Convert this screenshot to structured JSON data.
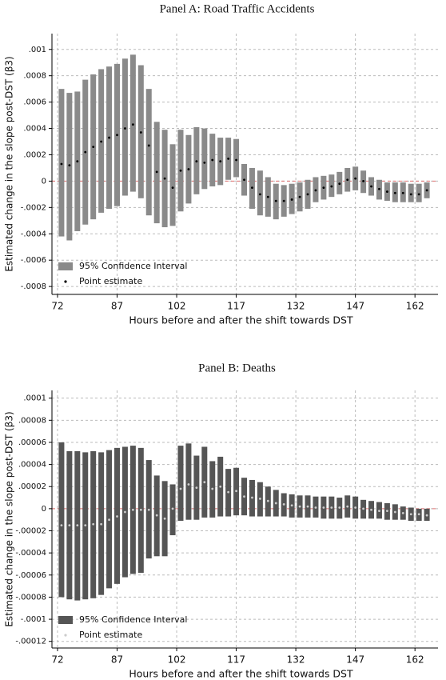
{
  "chart_data": [
    {
      "type": "interval",
      "title": "Panel A: Road Traffic Accidents",
      "xlabel": "Hours before and after the shift towards DST",
      "ylabel": "Estimated change in the slope post-DST (β3)",
      "x": [
        73,
        75,
        77,
        79,
        81,
        83,
        85,
        87,
        89,
        91,
        93,
        95,
        97,
        99,
        101,
        103,
        105,
        107,
        109,
        111,
        113,
        115,
        117,
        119,
        121,
        123,
        125,
        127,
        129,
        131,
        133,
        135,
        137,
        139,
        141,
        143,
        145,
        147,
        149,
        151,
        153,
        155,
        157,
        159,
        161,
        163,
        165
      ],
      "series": [
        {
          "name": "95% Confidence Interval",
          "color": "#8a8a8a",
          "upper": [
            0.0007,
            0.00067,
            0.00068,
            0.00077,
            0.00081,
            0.00085,
            0.00087,
            0.00089,
            0.00093,
            0.00096,
            0.00088,
            0.0007,
            0.00045,
            0.00039,
            0.00028,
            0.00039,
            0.00035,
            0.00041,
            0.0004,
            0.00036,
            0.00033,
            0.00033,
            0.00032,
            0.00013,
            0.0001,
            8e-05,
            3e-05,
            -2e-05,
            -3e-05,
            -2e-05,
            -1e-05,
            1e-05,
            3e-05,
            4e-05,
            5e-05,
            7e-05,
            0.0001,
            0.00011,
            8e-05,
            3e-05,
            1e-05,
            -1e-05,
            -1e-05,
            -1e-05,
            -2e-05,
            -2e-05,
            -1e-05
          ],
          "lower": [
            -0.00042,
            -0.00045,
            -0.00038,
            -0.00033,
            -0.00029,
            -0.00024,
            -0.00021,
            -0.00019,
            -0.00011,
            -8e-05,
            -0.00013,
            -0.00026,
            -0.00032,
            -0.00035,
            -0.00034,
            -0.00023,
            -0.00017,
            -0.0001,
            -6e-05,
            -4e-05,
            -3e-05,
            1e-05,
            3e-05,
            -0.00011,
            -0.00021,
            -0.00026,
            -0.00027,
            -0.00029,
            -0.00027,
            -0.00025,
            -0.00023,
            -0.00021,
            -0.00016,
            -0.00014,
            -0.00012,
            -0.0001,
            -8e-05,
            -7e-05,
            -9e-05,
            -0.00011,
            -0.00014,
            -0.00015,
            -0.00016,
            -0.00016,
            -0.00016,
            -0.00016,
            -0.00013
          ]
        },
        {
          "name": "Point estimate",
          "color": "#000000",
          "values": [
            0.00013,
            0.00012,
            0.00015,
            0.00022,
            0.00026,
            0.0003,
            0.00033,
            0.00035,
            0.0004,
            0.00043,
            0.00037,
            0.00027,
            7e-05,
            2e-05,
            -5e-05,
            8e-05,
            9e-05,
            0.00015,
            0.00014,
            0.00016,
            0.00015,
            0.00017,
            0.00016,
            1e-05,
            -5e-05,
            -0.0001,
            -0.00012,
            -0.00015,
            -0.00015,
            -0.00014,
            -0.00012,
            -0.0001,
            -7e-05,
            -5e-05,
            -4e-05,
            -2e-05,
            1e-05,
            2e-05,
            0,
            -4e-05,
            -6e-05,
            -8e-05,
            -9e-05,
            -9e-05,
            -0.0001,
            -0.0001,
            -7e-05
          ]
        }
      ],
      "xlim": [
        70.6,
        167.8
      ],
      "xticks": [
        72,
        87,
        102,
        117,
        132,
        147,
        162
      ],
      "ylim": [
        -0.00086,
        0.00112
      ],
      "yticks": [
        {
          "value": 0.001,
          "label": ".001"
        },
        {
          "value": 0.0008,
          "label": ".0008"
        },
        {
          "value": 0.0006,
          "label": ".0006"
        },
        {
          "value": 0.0004,
          "label": ".0004"
        },
        {
          "value": 0.0002,
          "label": ".0002"
        },
        0,
        {
          "value": -0.0002,
          "label": "-.0002"
        },
        {
          "value": -0.0004,
          "label": "-.0004"
        },
        {
          "value": -0.0006,
          "label": "-.0006"
        },
        {
          "value": -0.0008,
          "label": "-.0008"
        }
      ],
      "grid": true,
      "hline": {
        "value": 0,
        "color": "#e07070"
      },
      "legend": "lower left"
    },
    {
      "type": "interval",
      "title": "Panel B: Deaths",
      "xlabel": "Hours before and after the shift towards DST",
      "ylabel": "Estimated change in the slope post-DST (β3)",
      "x": [
        73,
        75,
        77,
        79,
        81,
        83,
        85,
        87,
        89,
        91,
        93,
        95,
        97,
        99,
        101,
        103,
        105,
        107,
        109,
        111,
        113,
        115,
        117,
        119,
        121,
        123,
        125,
        127,
        129,
        131,
        133,
        135,
        137,
        139,
        141,
        143,
        145,
        147,
        149,
        151,
        153,
        155,
        157,
        159,
        161,
        163,
        165
      ],
      "series": [
        {
          "name": "95% Confidence Interval",
          "color": "#555555",
          "upper": [
            6e-05,
            5.2e-05,
            5.2e-05,
            5.1e-05,
            5.2e-05,
            5.1e-05,
            5.3e-05,
            5.5e-05,
            5.6e-05,
            5.7e-05,
            5.5e-05,
            4.4e-05,
            3e-05,
            2.5e-05,
            2.2e-05,
            5.7e-05,
            5.9e-05,
            4.8e-05,
            5.6e-05,
            4.3e-05,
            4.7e-05,
            3.6e-05,
            3.7e-05,
            2.8e-05,
            2.6e-05,
            2.4e-05,
            2e-05,
            1.7e-05,
            1.4e-05,
            1.3e-05,
            1.2e-05,
            1.2e-05,
            1.1e-05,
            1.1e-05,
            1.1e-05,
            1e-05,
            1.2e-05,
            1.1e-05,
            8e-06,
            7e-06,
            6e-06,
            5e-06,
            4e-06,
            2e-06,
            1e-06,
            0,
            0
          ],
          "lower": [
            -8e-05,
            -8.2e-05,
            -8.3e-05,
            -8.2e-05,
            -8.1e-05,
            -7.8e-05,
            -7.2e-05,
            -6.8e-05,
            -6.2e-05,
            -5.9e-05,
            -5.8e-05,
            -4.5e-05,
            -4.3e-05,
            -4.3e-05,
            -2.4e-05,
            -1.1e-05,
            -1e-05,
            -1e-05,
            -8e-06,
            -8e-06,
            -7e-06,
            -7e-06,
            -6e-06,
            -6e-06,
            -7e-06,
            -7e-06,
            -7e-06,
            -7e-06,
            -7e-06,
            -8e-06,
            -8e-06,
            -8e-06,
            -8e-06,
            -9e-06,
            -9e-06,
            -9e-06,
            -8e-06,
            -9e-06,
            -9e-06,
            -9e-06,
            -9e-06,
            -1e-05,
            -1e-05,
            -1e-05,
            -1.1e-05,
            -1.1e-05,
            -1.1e-05
          ]
        },
        {
          "name": "Point estimate",
          "color": "#cccccc",
          "values": [
            -1.5e-05,
            -1.5e-05,
            -1.5e-05,
            -1.5e-05,
            -1.4e-05,
            -1.4e-05,
            -1e-05,
            -7e-06,
            -3e-06,
            -1e-06,
            -1e-06,
            -1e-06,
            -6e-06,
            -9e-06,
            0,
            1.8e-05,
            2.2e-05,
            1.9e-05,
            2.4e-05,
            1.8e-05,
            2e-05,
            1.5e-05,
            1.6e-05,
            1.1e-05,
            1e-05,
            9e-06,
            7e-06,
            5e-06,
            4e-06,
            3e-06,
            2e-06,
            2e-06,
            1e-06,
            1e-06,
            1e-06,
            1e-06,
            2e-06,
            1e-06,
            0,
            -1e-06,
            -2e-06,
            -2e-06,
            -3e-06,
            -4e-06,
            -5e-06,
            -5e-06,
            -6e-06
          ]
        }
      ],
      "xlim": [
        70.6,
        167.8
      ],
      "xticks": [
        72,
        87,
        102,
        117,
        132,
        147,
        162
      ],
      "ylim": [
        -0.000126,
        0.000107
      ],
      "yticks": [
        {
          "value": 0.0001,
          "label": ".0001"
        },
        {
          "value": 8e-05,
          "label": ".00008"
        },
        {
          "value": 6e-05,
          "label": ".00006"
        },
        {
          "value": 4e-05,
          "label": ".00004"
        },
        {
          "value": 2e-05,
          "label": ".00002"
        },
        0,
        {
          "value": -2e-05,
          "label": "-.00002"
        },
        {
          "value": -4e-05,
          "label": "-.00004"
        },
        {
          "value": -6e-05,
          "label": "-.00006"
        },
        {
          "value": -8e-05,
          "label": "-.00008"
        },
        {
          "value": -0.0001,
          "label": "-.0001"
        },
        {
          "value": -0.00012,
          "label": "-.00012"
        }
      ],
      "grid": true,
      "hline": {
        "value": 0,
        "color": "#e07070"
      },
      "legend": "lower left"
    }
  ]
}
